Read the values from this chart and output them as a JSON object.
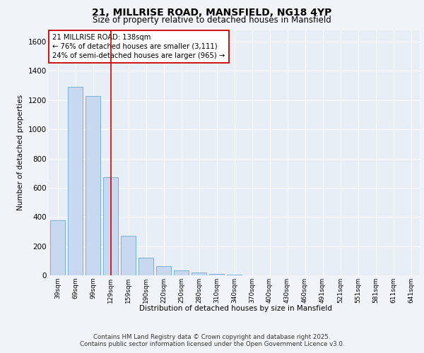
{
  "title_line1": "21, MILLRISE ROAD, MANSFIELD, NG18 4YP",
  "title_line2": "Size of property relative to detached houses in Mansfield",
  "xlabel": "Distribution of detached houses by size in Mansfield",
  "ylabel": "Number of detached properties",
  "categories": [
    "39sqm",
    "69sqm",
    "99sqm",
    "129sqm",
    "159sqm",
    "190sqm",
    "220sqm",
    "250sqm",
    "280sqm",
    "310sqm",
    "340sqm",
    "370sqm",
    "400sqm",
    "430sqm",
    "460sqm",
    "491sqm",
    "521sqm",
    "551sqm",
    "581sqm",
    "611sqm",
    "641sqm"
  ],
  "values": [
    375,
    1290,
    1230,
    670,
    270,
    120,
    65,
    35,
    20,
    10,
    3,
    0,
    0,
    0,
    0,
    0,
    0,
    0,
    0,
    0,
    0
  ],
  "bar_color": "#c8d8ee",
  "bar_edge_color": "#7aafd4",
  "background_color": "#f0f4f8",
  "plot_bg_color": "#e8eef5",
  "grid_color": "#ffffff",
  "red_line_x": 3.0,
  "red_line_color": "#cc0000",
  "annotation_text": "21 MILLRISE ROAD: 138sqm\n← 76% of detached houses are smaller (3,111)\n24% of semi-detached houses are larger (965) →",
  "annotation_box_color": "#ffffff",
  "annotation_box_edge": "#cc0000",
  "ylim": [
    0,
    1680
  ],
  "yticks": [
    0,
    200,
    400,
    600,
    800,
    1000,
    1200,
    1400,
    1600
  ],
  "footer_line1": "Contains HM Land Registry data © Crown copyright and database right 2025.",
  "footer_line2": "Contains public sector information licensed under the Open Government Licence v3.0."
}
